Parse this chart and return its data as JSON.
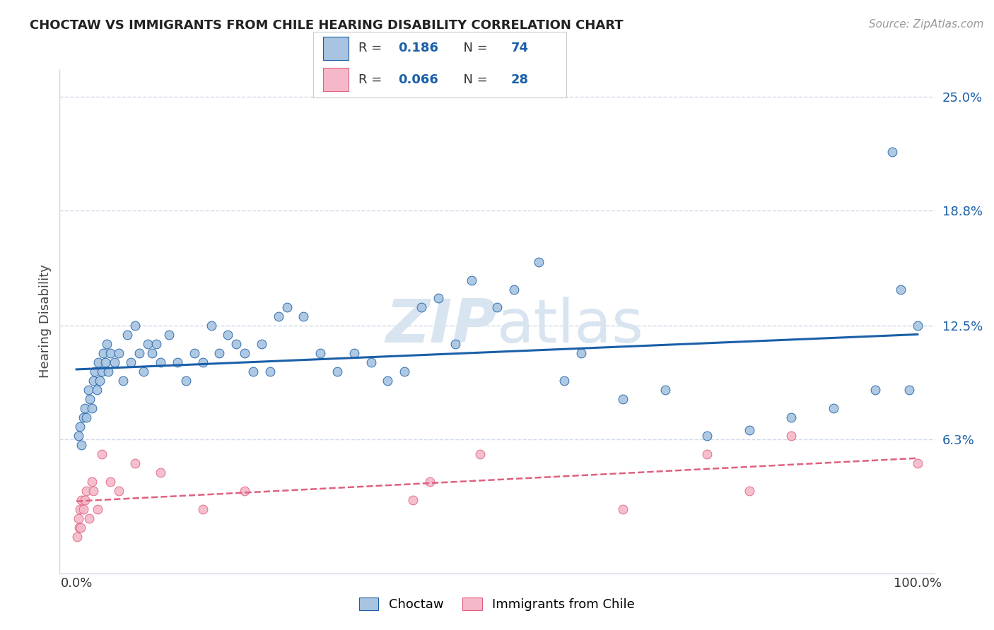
{
  "title": "CHOCTAW VS IMMIGRANTS FROM CHILE HEARING DISABILITY CORRELATION CHART",
  "source": "Source: ZipAtlas.com",
  "ylabel": "Hearing Disability",
  "choctaw_R": "0.186",
  "choctaw_N": "74",
  "chile_R": "0.066",
  "chile_N": "28",
  "choctaw_color": "#a8c4e0",
  "chile_color": "#f4b8c8",
  "choctaw_line_color": "#1a5fa8",
  "chile_line_color": "#e06080",
  "choctaw_scatter_x": [
    0.2,
    0.4,
    0.6,
    0.8,
    1.0,
    1.2,
    1.4,
    1.6,
    1.8,
    2.0,
    2.2,
    2.4,
    2.6,
    2.8,
    3.0,
    3.2,
    3.4,
    3.6,
    3.8,
    4.0,
    4.5,
    5.0,
    5.5,
    6.0,
    6.5,
    7.0,
    7.5,
    8.0,
    8.5,
    9.0,
    9.5,
    10.0,
    11.0,
    12.0,
    13.0,
    14.0,
    15.0,
    16.0,
    17.0,
    18.0,
    19.0,
    20.0,
    21.0,
    22.0,
    23.0,
    24.0,
    25.0,
    27.0,
    29.0,
    31.0,
    33.0,
    35.0,
    37.0,
    39.0,
    41.0,
    43.0,
    45.0,
    47.0,
    50.0,
    52.0,
    55.0,
    58.0,
    60.0,
    65.0,
    70.0,
    75.0,
    80.0,
    85.0,
    90.0,
    95.0,
    97.0,
    98.0,
    99.0,
    100.0
  ],
  "choctaw_scatter_y": [
    6.5,
    7.0,
    6.0,
    7.5,
    8.0,
    7.5,
    9.0,
    8.5,
    8.0,
    9.5,
    10.0,
    9.0,
    10.5,
    9.5,
    10.0,
    11.0,
    10.5,
    11.5,
    10.0,
    11.0,
    10.5,
    11.0,
    9.5,
    12.0,
    10.5,
    12.5,
    11.0,
    10.0,
    11.5,
    11.0,
    11.5,
    10.5,
    12.0,
    10.5,
    9.5,
    11.0,
    10.5,
    12.5,
    11.0,
    12.0,
    11.5,
    11.0,
    10.0,
    11.5,
    10.0,
    13.0,
    13.5,
    13.0,
    11.0,
    10.0,
    11.0,
    10.5,
    9.5,
    10.0,
    13.5,
    14.0,
    11.5,
    15.0,
    13.5,
    14.5,
    16.0,
    9.5,
    11.0,
    8.5,
    9.0,
    6.5,
    6.8,
    7.5,
    8.0,
    9.0,
    22.0,
    14.5,
    9.0,
    12.5
  ],
  "chile_scatter_x": [
    0.1,
    0.2,
    0.3,
    0.4,
    0.5,
    0.6,
    0.8,
    1.0,
    1.2,
    1.5,
    1.8,
    2.0,
    2.5,
    3.0,
    4.0,
    5.0,
    7.0,
    10.0,
    15.0,
    20.0,
    40.0,
    42.0,
    48.0,
    65.0,
    75.0,
    80.0,
    85.0,
    100.0
  ],
  "chile_scatter_y": [
    1.0,
    2.0,
    1.5,
    2.5,
    1.5,
    3.0,
    2.5,
    3.0,
    3.5,
    2.0,
    4.0,
    3.5,
    2.5,
    5.5,
    4.0,
    3.5,
    5.0,
    4.5,
    2.5,
    3.5,
    3.0,
    4.0,
    5.5,
    2.5,
    5.5,
    3.5,
    6.5,
    5.0
  ],
  "xlim": [
    -2,
    102
  ],
  "ylim": [
    -1.0,
    26.5
  ],
  "ytick_vals": [
    6.3,
    12.5,
    18.8,
    25.0
  ],
  "ytick_labels": [
    "6.3%",
    "12.5%",
    "18.8%",
    "25.0%"
  ],
  "xtick_vals": [
    0,
    100
  ],
  "xtick_labels": [
    "0.0%",
    "100.0%"
  ],
  "background_color": "#ffffff",
  "grid_color": "#d0d8e8",
  "watermark_zip": "ZIP",
  "watermark_atlas": "atlas",
  "watermark_color": "#d8e4f0"
}
